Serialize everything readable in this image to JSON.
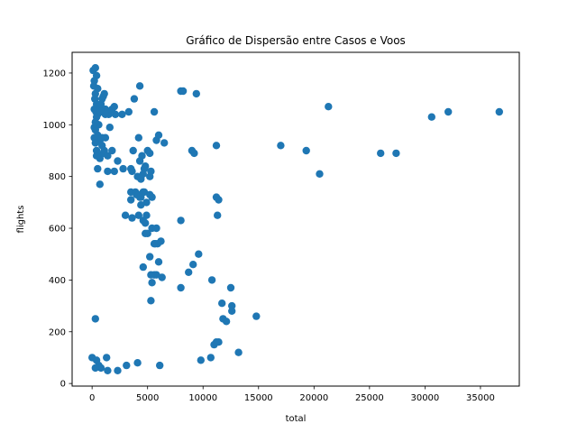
{
  "chart_data": {
    "type": "scatter",
    "title": "Gráfico de Dispersão entre Casos e Voos",
    "xlabel": "total",
    "ylabel": "flights",
    "xlim": [
      -1800,
      38500
    ],
    "ylim": [
      -10,
      1280
    ],
    "xticks": [
      0,
      5000,
      10000,
      15000,
      20000,
      25000,
      30000,
      35000
    ],
    "yticks": [
      0,
      200,
      400,
      600,
      800,
      1000,
      1200
    ],
    "marker_color": "#1f77b4",
    "grid": false,
    "legend": false,
    "x": [
      100,
      300,
      400,
      200,
      150,
      500,
      300,
      250,
      400,
      600,
      200,
      350,
      500,
      700,
      800,
      900,
      1000,
      1100,
      1200,
      1300,
      1500,
      1800,
      2000,
      400,
      600,
      300,
      500,
      700,
      900,
      1100,
      200,
      300,
      400,
      500,
      700,
      1000,
      1400,
      1800,
      2300,
      2800,
      200,
      400,
      800,
      1200,
      1600,
      2100,
      2700,
      3300,
      3800,
      4300,
      300,
      500,
      700,
      900,
      1400,
      2000,
      400,
      1200,
      3500,
      5000,
      4200,
      3700,
      4500,
      5200,
      5800,
      6000,
      6500,
      4300,
      4800,
      5300,
      3600,
      4100,
      4700,
      5200,
      3500,
      4000,
      4400,
      4900,
      5400,
      4600,
      3500,
      3900,
      4300,
      4700,
      5200,
      4200,
      4900,
      3600,
      4600,
      4800,
      4800,
      5000,
      5400,
      5800,
      5600,
      5700,
      5900,
      3000,
      4200,
      4400,
      5200,
      5600,
      5800,
      6300,
      5300,
      6000,
      5400,
      6200,
      5300,
      4600,
      11200,
      11400,
      11300,
      8000,
      9600,
      9100,
      8700,
      10800,
      8000,
      12500,
      11700,
      12600,
      11800,
      12600,
      12100,
      14800,
      11400,
      11000,
      13200,
      10700,
      9800,
      11200,
      4400,
      4600,
      8000,
      8200,
      9400,
      5600,
      9000,
      9200,
      11200,
      17000,
      19300,
      20500,
      21300,
      26000,
      27400,
      30600,
      32100,
      36700,
      300,
      0,
      400,
      600,
      800,
      1400,
      2300,
      3100,
      4100,
      6100,
      1300,
      300
    ],
    "y": [
      1210,
      1220,
      1190,
      1170,
      1150,
      1140,
      1120,
      1100,
      1080,
      1070,
      1060,
      1050,
      1040,
      1060,
      1080,
      1100,
      1110,
      1120,
      1060,
      1050,
      1040,
      1060,
      1070,
      1030,
      1000,
      980,
      960,
      940,
      920,
      900,
      950,
      930,
      900,
      880,
      870,
      890,
      880,
      900,
      860,
      830,
      990,
      1000,
      1050,
      1040,
      990,
      1040,
      1040,
      1050,
      1100,
      1150,
      1010,
      830,
      770,
      950,
      820,
      820,
      880,
      950,
      830,
      900,
      950,
      900,
      880,
      890,
      940,
      960,
      930,
      860,
      840,
      820,
      820,
      800,
      830,
      800,
      740,
      730,
      720,
      700,
      720,
      740,
      710,
      740,
      720,
      740,
      730,
      650,
      650,
      640,
      630,
      620,
      580,
      580,
      600,
      600,
      540,
      540,
      540,
      650,
      730,
      690,
      490,
      420,
      420,
      410,
      320,
      470,
      390,
      550,
      420,
      450,
      720,
      710,
      650,
      630,
      500,
      460,
      430,
      400,
      370,
      370,
      310,
      300,
      250,
      280,
      240,
      260,
      160,
      150,
      120,
      100,
      90,
      160,
      790,
      810,
      1130,
      1130,
      1120,
      1050,
      900,
      890,
      920,
      920,
      900,
      810,
      1070,
      890,
      890,
      1030,
      1050,
      1050,
      250,
      100,
      90,
      70,
      60,
      50,
      50,
      70,
      80,
      70,
      100,
      60
    ]
  }
}
